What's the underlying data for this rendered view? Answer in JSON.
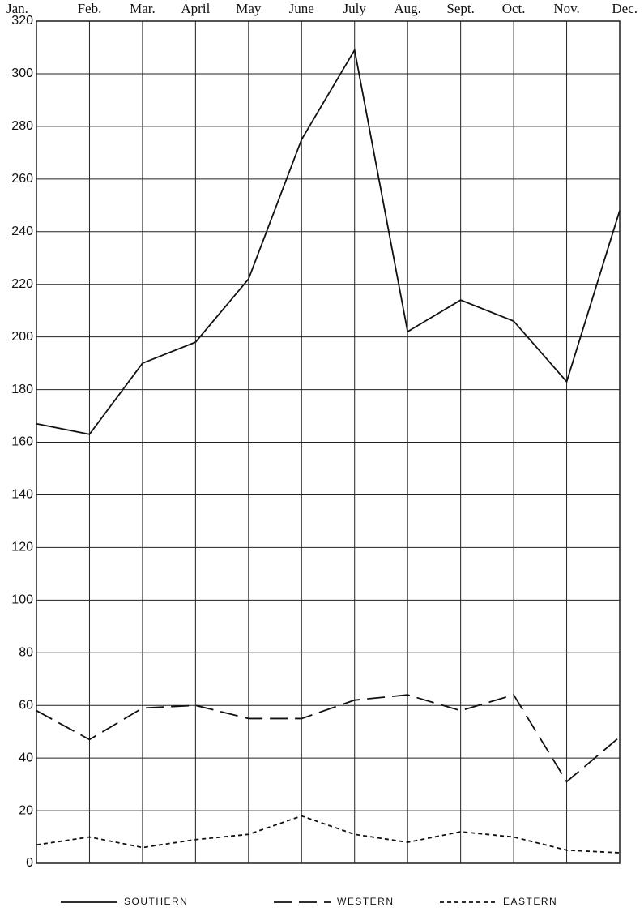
{
  "chart_data": {
    "type": "line",
    "categories": [
      "Jan.",
      "Feb.",
      "Mar.",
      "April",
      "May",
      "June",
      "July",
      "Aug.",
      "Sept.",
      "Oct.",
      "Nov.",
      "Dec."
    ],
    "series": [
      {
        "name": "SOUTHERN",
        "color": "#111111",
        "dash": "solid",
        "values": [
          167,
          163,
          190,
          198,
          222,
          275,
          309,
          202,
          214,
          206,
          183,
          248
        ]
      },
      {
        "name": "WESTERN",
        "color": "#111111",
        "dash": "dashed",
        "values": [
          58,
          47,
          59,
          60,
          55,
          55,
          62,
          64,
          58,
          64,
          31,
          48
        ]
      },
      {
        "name": "EASTERN",
        "color": "#111111",
        "dash": "dotted",
        "values": [
          7,
          10,
          6,
          9,
          11,
          18,
          11,
          8,
          12,
          10,
          5,
          4
        ]
      }
    ],
    "ylim": [
      0,
      320
    ],
    "yticks": [
      0,
      20,
      40,
      60,
      80,
      100,
      120,
      140,
      160,
      180,
      200,
      220,
      240,
      260,
      280,
      300,
      320
    ],
    "grid": true,
    "legend": "bottom"
  }
}
